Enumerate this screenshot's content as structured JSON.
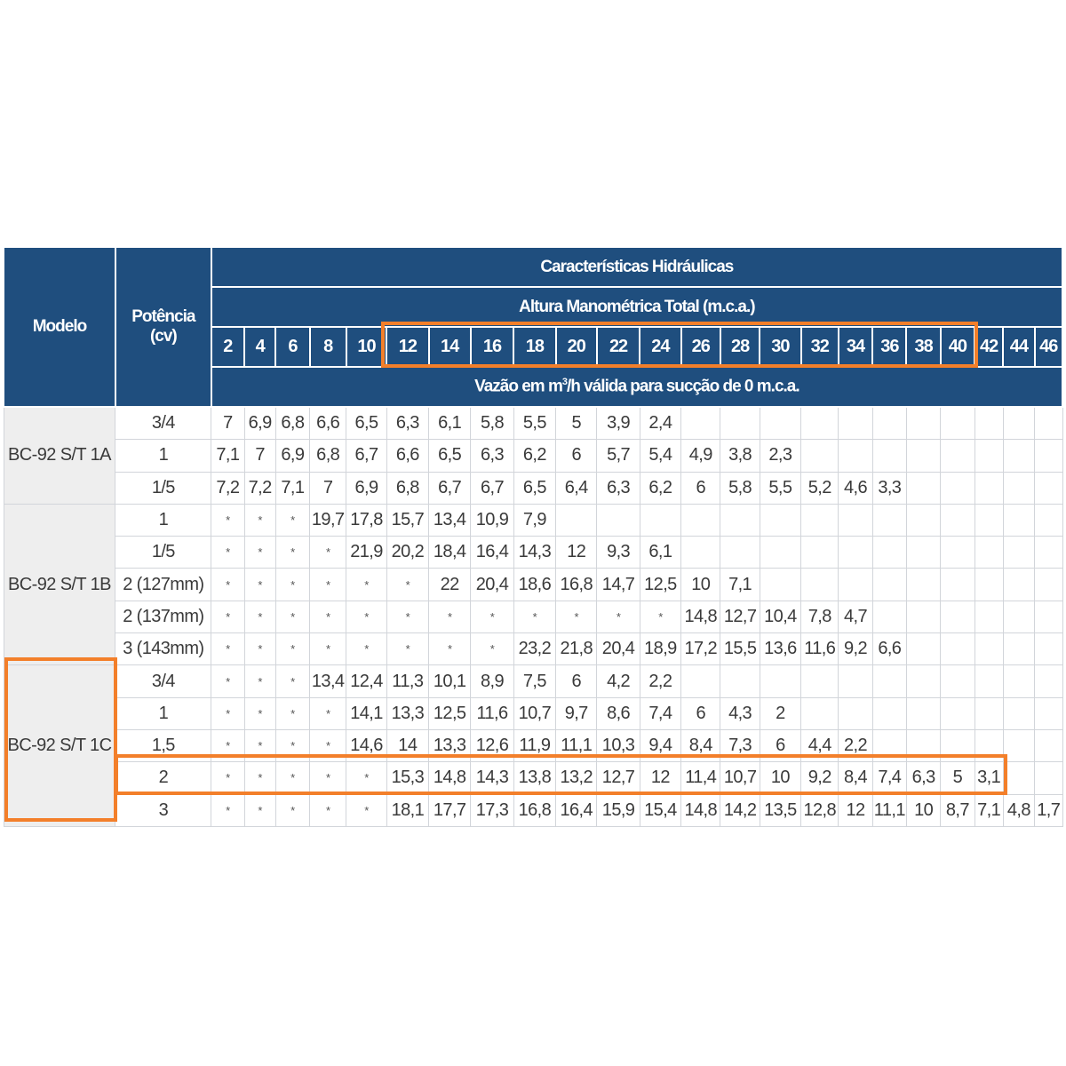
{
  "headers": {
    "modelo": "Modelo",
    "potencia_line1": "Potência",
    "potencia_line2": "(cv)",
    "caracteristicas": "Características Hidráulicas",
    "altura": "Altura Manométrica Total (m.c.a.)",
    "vazao_pre": "Vazão em m",
    "vazao_sup": "3",
    "vazao_post": "/h válida para sucção de 0 m.c.a."
  },
  "heights": [
    "2",
    "4",
    "6",
    "8",
    "10",
    "12",
    "14",
    "16",
    "18",
    "20",
    "22",
    "24",
    "26",
    "28",
    "30",
    "32",
    "34",
    "36",
    "38",
    "40",
    "42",
    "44",
    "46"
  ],
  "groups": [
    {
      "model": "BC-92 S/T 1A",
      "rows": [
        {
          "pot": "3/4",
          "values": [
            "7",
            "6,9",
            "6,8",
            "6,6",
            "6,5",
            "6,3",
            "6,1",
            "5,8",
            "5,5",
            "5",
            "3,9",
            "2,4",
            "",
            "",
            "",
            "",
            "",
            "",
            "",
            "",
            "",
            "",
            ""
          ]
        },
        {
          "pot": "1",
          "values": [
            "7,1",
            "7",
            "6,9",
            "6,8",
            "6,7",
            "6,6",
            "6,5",
            "6,3",
            "6,2",
            "6",
            "5,7",
            "5,4",
            "4,9",
            "3,8",
            "2,3",
            "",
            "",
            "",
            "",
            "",
            "",
            "",
            ""
          ]
        },
        {
          "pot": "1/5",
          "values": [
            "7,2",
            "7,2",
            "7,1",
            "7",
            "6,9",
            "6,8",
            "6,7",
            "6,7",
            "6,5",
            "6,4",
            "6,3",
            "6,2",
            "6",
            "5,8",
            "5,5",
            "5,2",
            "4,6",
            "3,3",
            "",
            "",
            "",
            "",
            ""
          ]
        }
      ]
    },
    {
      "model": "BC-92 S/T 1B",
      "rows": [
        {
          "pot": "1",
          "values": [
            "*",
            "*",
            "*",
            "19,7",
            "17,8",
            "15,7",
            "13,4",
            "10,9",
            "7,9",
            "",
            "",
            "",
            "",
            "",
            "",
            "",
            "",
            "",
            "",
            "",
            "",
            "",
            ""
          ]
        },
        {
          "pot": "1/5",
          "values": [
            "*",
            "*",
            "*",
            "*",
            "21,9",
            "20,2",
            "18,4",
            "16,4",
            "14,3",
            "12",
            "9,3",
            "6,1",
            "",
            "",
            "",
            "",
            "",
            "",
            "",
            "",
            "",
            "",
            ""
          ]
        },
        {
          "pot": "2 (127mm)",
          "values": [
            "*",
            "*",
            "*",
            "*",
            "*",
            "*",
            "22",
            "20,4",
            "18,6",
            "16,8",
            "14,7",
            "12,5",
            "10",
            "7,1",
            "",
            "",
            "",
            "",
            "",
            "",
            "",
            "",
            ""
          ]
        },
        {
          "pot": "2 (137mm)",
          "values": [
            "*",
            "*",
            "*",
            "*",
            "*",
            "*",
            "*",
            "*",
            "*",
            "*",
            "*",
            "*",
            "14,8",
            "12,7",
            "10,4",
            "7,8",
            "4,7",
            "",
            "",
            "",
            "",
            "",
            ""
          ]
        },
        {
          "pot": "3 (143mm)",
          "values": [
            "*",
            "*",
            "*",
            "*",
            "*",
            "*",
            "*",
            "*",
            "23,2",
            "21,8",
            "20,4",
            "18,9",
            "17,2",
            "15,5",
            "13,6",
            "11,6",
            "9,2",
            "6,6",
            "",
            "",
            "",
            "",
            ""
          ]
        }
      ]
    },
    {
      "model": "BC-92 S/T 1C",
      "rows": [
        {
          "pot": "3/4",
          "values": [
            "*",
            "*",
            "*",
            "13,4",
            "12,4",
            "11,3",
            "10,1",
            "8,9",
            "7,5",
            "6",
            "4,2",
            "2,2",
            "",
            "",
            "",
            "",
            "",
            "",
            "",
            "",
            "",
            "",
            ""
          ]
        },
        {
          "pot": "1",
          "values": [
            "*",
            "*",
            "*",
            "*",
            "14,1",
            "13,3",
            "12,5",
            "11,6",
            "10,7",
            "9,7",
            "8,6",
            "7,4",
            "6",
            "4,3",
            "2",
            "",
            "",
            "",
            "",
            "",
            "",
            "",
            ""
          ]
        },
        {
          "pot": "1,5",
          "values": [
            "*",
            "*",
            "*",
            "*",
            "14,6",
            "14",
            "13,3",
            "12,6",
            "11,9",
            "11,1",
            "10,3",
            "9,4",
            "8,4",
            "7,3",
            "6",
            "4,4",
            "2,2",
            "",
            "",
            "",
            "",
            "",
            ""
          ]
        },
        {
          "pot": "2",
          "values": [
            "*",
            "*",
            "*",
            "*",
            "*",
            "15,3",
            "14,8",
            "14,3",
            "13,8",
            "13,2",
            "12,7",
            "12",
            "11,4",
            "10,7",
            "10",
            "9,2",
            "8,4",
            "7,4",
            "6,3",
            "5",
            "3,1",
            "",
            ""
          ]
        },
        {
          "pot": "3",
          "values": [
            "*",
            "*",
            "*",
            "*",
            "*",
            "18,1",
            "17,7",
            "17,3",
            "16,8",
            "16,4",
            "15,9",
            "15,4",
            "14,8",
            "14,2",
            "13,5",
            "12,8",
            "12",
            "11,1",
            "10",
            "8,7",
            "7,1",
            "4,8",
            "1,7"
          ]
        }
      ]
    }
  ],
  "highlight_color": "#f37f2a",
  "header_color": "#1f4e7e"
}
